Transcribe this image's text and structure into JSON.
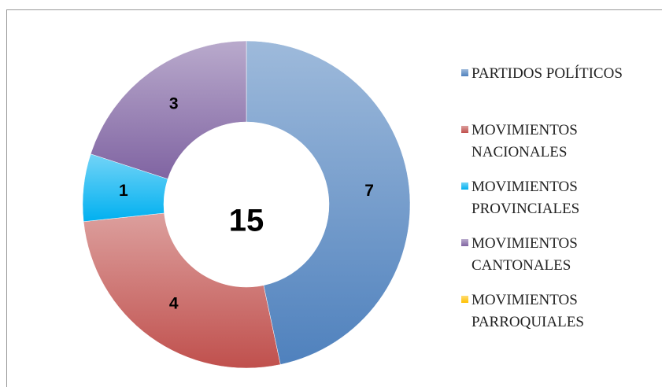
{
  "chart_data": {
    "type": "donut",
    "categories": [
      "PARTIDOS POLÍTICOS",
      "MOVIMIENTOS NACIONALES",
      "MOVIMIENTOS PROVINCIALES",
      "MOVIMIENTOS CANTONALES",
      "MOVIMIENTOS PARROQUIALES"
    ],
    "values": [
      7,
      4,
      1,
      3,
      0
    ],
    "colors": [
      "#4f81bd",
      "#c0504d",
      "#00b0f0",
      "#8064a2",
      "#ffc000"
    ],
    "total": 15,
    "legend": "right"
  }
}
